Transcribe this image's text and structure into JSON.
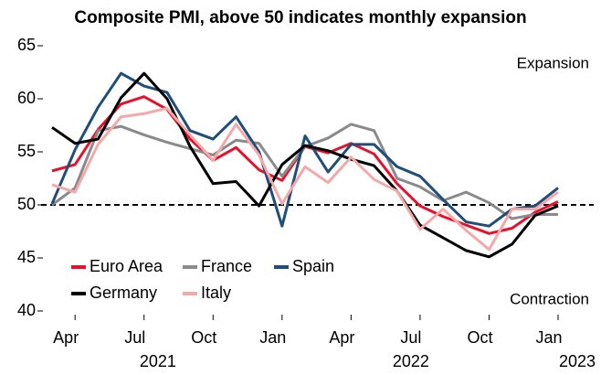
{
  "chart_data": {
    "type": "line",
    "title": "Composite PMI, above 50 indicates monthly expansion",
    "categories": [
      null,
      "Apr",
      null,
      null,
      "Jul",
      null,
      null,
      "Oct",
      null,
      null,
      "Jan",
      null,
      null,
      "Apr",
      null,
      null,
      "Jul",
      null,
      null,
      "Oct",
      null,
      null,
      "Jan"
    ],
    "year_labels": [
      null,
      null,
      null,
      null,
      null,
      "2021",
      null,
      null,
      null,
      null,
      null,
      null,
      null,
      null,
      null,
      null,
      "2022",
      null,
      null,
      null,
      null,
      null,
      "2023"
    ],
    "series": [
      {
        "name": "Euro Area",
        "color": "#e8112d",
        "values": [
          53.2,
          53.8,
          57.1,
          59.5,
          60.2,
          59.0,
          56.2,
          54.2,
          55.4,
          53.3,
          52.3,
          55.5,
          54.9,
          55.8,
          54.8,
          52.0,
          49.9,
          48.9,
          48.1,
          47.3,
          47.8,
          49.3,
          50.3
        ]
      },
      {
        "name": "France",
        "color": "#8a8a8a",
        "values": [
          50.0,
          51.6,
          57.0,
          57.4,
          56.6,
          55.9,
          55.3,
          54.7,
          56.1,
          55.8,
          52.7,
          55.5,
          56.3,
          57.6,
          57.0,
          52.5,
          51.7,
          50.4,
          51.2,
          50.2,
          48.7,
          49.1,
          49.1
        ]
      },
      {
        "name": "Spain",
        "color": "#1f4e79",
        "values": [
          50.1,
          55.2,
          59.2,
          62.4,
          61.2,
          60.6,
          57.0,
          56.2,
          58.3,
          55.0,
          48.0,
          56.5,
          53.1,
          55.7,
          55.7,
          53.6,
          52.7,
          50.5,
          48.4,
          48.0,
          49.6,
          49.9,
          51.6
        ]
      },
      {
        "name": "Germany",
        "color": "#000000",
        "values": [
          57.3,
          55.8,
          56.2,
          60.1,
          62.4,
          60.0,
          55.5,
          52.0,
          52.2,
          49.9,
          53.8,
          55.6,
          55.1,
          54.3,
          53.7,
          51.3,
          48.1,
          46.9,
          45.7,
          45.1,
          46.3,
          49.0,
          49.9
        ]
      },
      {
        "name": "Italy",
        "color": "#f4a9a8",
        "values": [
          51.9,
          51.2,
          55.7,
          58.3,
          58.6,
          59.1,
          56.6,
          54.2,
          57.6,
          54.7,
          50.1,
          53.6,
          52.1,
          54.5,
          52.4,
          51.3,
          47.7,
          49.6,
          47.6,
          45.8,
          49.6,
          49.6,
          51.2
        ]
      }
    ],
    "ylim": [
      40,
      65
    ],
    "yticks": [
      40,
      45,
      50,
      55,
      60,
      65
    ],
    "reference_line": 50,
    "annotations": {
      "upper": "Expansion",
      "lower": "Contraction"
    }
  }
}
